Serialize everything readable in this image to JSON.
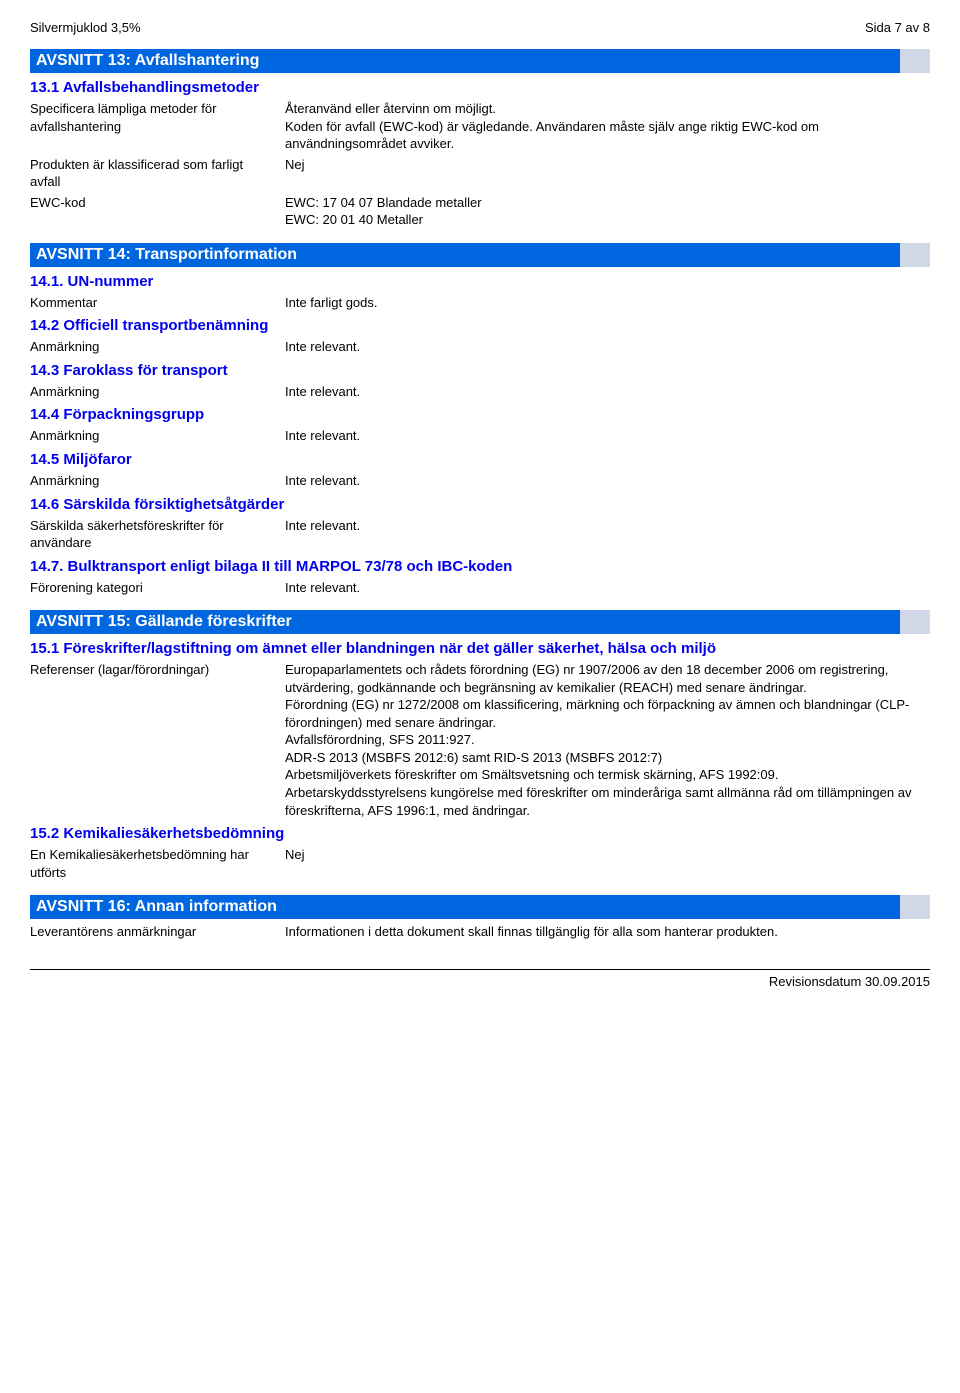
{
  "header": {
    "product": "Silvermjuklod 3,5%",
    "pageInfo": "Sida 7 av 8"
  },
  "section13": {
    "title": "AVSNITT 13: Avfallshantering",
    "sub1": "13.1 Avfallsbehandlingsmetoder",
    "rows": [
      {
        "label": "Specificera lämpliga metoder för avfallshantering",
        "value": "Återanvänd eller återvinn om möjligt.\nKoden för avfall (EWC-kod) är vägledande. Användaren måste själv ange riktig EWC-kod om användningsområdet avviker."
      },
      {
        "label": "Produkten är klassificerad som farligt avfall",
        "value": "Nej"
      },
      {
        "label": "EWC-kod",
        "value": "EWC: 17 04 07 Blandade metaller\nEWC: 20 01 40 Metaller"
      }
    ]
  },
  "section14": {
    "title": "AVSNITT 14: Transportinformation",
    "s1": {
      "head": "14.1. UN-nummer",
      "label": "Kommentar",
      "value": "Inte farligt gods."
    },
    "s2": {
      "head": "14.2 Officiell transportbenämning",
      "label": "Anmärkning",
      "value": "Inte relevant."
    },
    "s3": {
      "head": "14.3 Faroklass för transport",
      "label": "Anmärkning",
      "value": "Inte relevant."
    },
    "s4": {
      "head": "14.4 Förpackningsgrupp",
      "label": "Anmärkning",
      "value": "Inte relevant."
    },
    "s5": {
      "head": "14.5 Miljöfaror",
      "label": "Anmärkning",
      "value": "Inte relevant."
    },
    "s6": {
      "head": "14.6 Särskilda försiktighetsåtgärder",
      "label": "Särskilda säkerhetsföreskrifter för användare",
      "value": "Inte relevant."
    },
    "s7": {
      "head": "14.7. Bulktransport enligt bilaga II till MARPOL 73/78 och IBC-koden",
      "label": "Förorening kategori",
      "value": "Inte relevant."
    }
  },
  "section15": {
    "title": "AVSNITT 15: Gällande föreskrifter",
    "sub1": "15.1 Föreskrifter/lagstiftning om ämnet eller blandningen när det gäller säkerhet, hälsa och miljö",
    "row1": {
      "label": "Referenser (lagar/förordningar)",
      "value": "Europaparlamentets och rådets förordning (EG) nr 1907/2006 av den 18 december 2006 om registrering, utvärdering, godkännande och begränsning av kemikalier (REACH) med senare ändringar.\nFörordning (EG) nr 1272/2008 om klassificering, märkning och förpackning av ämnen och blandningar (CLP-förordningen) med senare ändringar.\nAvfallsförordning, SFS 2011:927.\nADR-S 2013 (MSBFS 2012:6) samt RID-S 2013 (MSBFS 2012:7)\nArbetsmiljöverkets föreskrifter om Smältsvetsning och termisk skärning, AFS 1992:09.\nArbetarskyddsstyrelsens kungörelse med föreskrifter om minderåriga samt allmänna råd om tillämpningen av föreskrifterna, AFS 1996:1, med ändringar."
    },
    "sub2": "15.2 Kemikaliesäkerhetsbedömning",
    "row2": {
      "label": "En Kemikaliesäkerhetsbedömning har utförts",
      "value": "Nej"
    }
  },
  "section16": {
    "title": "AVSNITT 16: Annan information",
    "row1": {
      "label": "Leverantörens anmärkningar",
      "value": "Informationen i detta dokument skall finnas tillgänglig för alla som hanterar produkten."
    }
  },
  "footer": {
    "text": "Revisionsdatum 30.09.2015"
  }
}
